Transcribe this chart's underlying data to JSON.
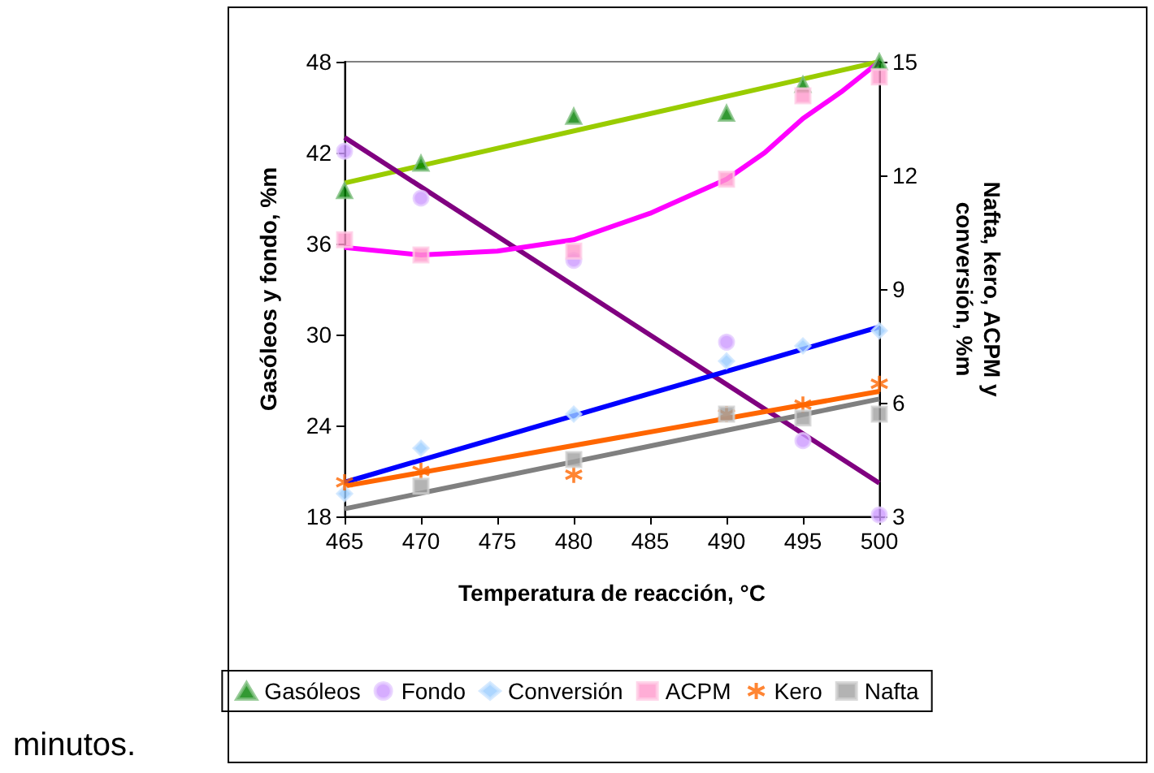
{
  "chart_data": {
    "type": "scatter",
    "xlabel": "Temperatura de reacción, °C",
    "ylabel": "Gasóleos y fondo, %m",
    "y2label": "Nafta, kero, ACPM y\nconversión, %m",
    "xlim": [
      465,
      500
    ],
    "xticks": [
      465,
      470,
      475,
      480,
      485,
      490,
      495,
      500
    ],
    "ylim": [
      18,
      48
    ],
    "yticks": [
      18,
      24,
      30,
      36,
      42,
      48
    ],
    "y2lim": [
      3,
      15
    ],
    "y2ticks": [
      3,
      6,
      9,
      12,
      15
    ],
    "grid": false,
    "legend": "bottom",
    "annotations": [
      "minutos."
    ],
    "x": [
      465,
      470,
      480,
      490,
      495,
      500
    ],
    "series": [
      {
        "name": "Gasóleos",
        "marker": "triangle",
        "color": "#008000",
        "values": [
          39.5,
          41.3,
          44.4,
          44.6,
          46.5,
          48.0
        ]
      },
      {
        "name": "Fondo",
        "marker": "circle",
        "color": "#cc99ff",
        "values": [
          42.1,
          39.0,
          34.9,
          29.5,
          23.0,
          18.1
        ]
      },
      {
        "name": "Conversión",
        "marker": "diamond",
        "axis": "y2",
        "color": "#99ccff",
        "values": [
          3.6,
          4.8,
          5.7,
          7.1,
          7.5,
          7.9
        ]
      },
      {
        "name": "ACPM",
        "marker": "square",
        "axis": "y2",
        "color": "#ff99cc",
        "values": [
          10.3,
          9.9,
          10.0,
          11.9,
          14.1,
          14.6
        ]
      },
      {
        "name": "Kero",
        "marker": "cross",
        "axis": "y2",
        "color": "#ff6600",
        "values": [
          3.9,
          4.2,
          4.1,
          5.7,
          5.95,
          6.5
        ]
      },
      {
        "name": "Nafta",
        "marker": "square",
        "axis": "y2",
        "color": "#a0a0a0",
        "values": [
          null,
          3.8,
          4.5,
          5.7,
          5.6,
          5.7
        ]
      },
      {
        "type": "line",
        "marker": "none",
        "color": "#99cc00",
        "x": [
          465,
          500
        ],
        "values": [
          40.0,
          48.0
        ]
      },
      {
        "type": "line",
        "marker": "none",
        "color": "#800080",
        "x": [
          465,
          500
        ],
        "values": [
          43.0,
          20.2
        ]
      },
      {
        "type": "line",
        "marker": "none",
        "axis": "y2",
        "color": "#0000ff",
        "x": [
          465,
          500
        ],
        "values": [
          3.9,
          8.0
        ]
      },
      {
        "type": "line",
        "marker": "none",
        "axis": "y2",
        "color": "#ff00ff",
        "x": [
          465,
          470,
          475,
          480,
          485,
          490,
          492.5,
          495,
          497.5,
          500
        ],
        "values": [
          10.1,
          9.9,
          10.0,
          10.3,
          11.0,
          11.9,
          12.6,
          13.5,
          14.2,
          15.0
        ]
      },
      {
        "type": "line",
        "marker": "none",
        "axis": "y2",
        "color": "#ff6600",
        "x": [
          465,
          500
        ],
        "values": [
          3.8,
          6.3
        ]
      },
      {
        "type": "line",
        "marker": "none",
        "axis": "y2",
        "color": "#808080",
        "x": [
          465,
          500
        ],
        "values": [
          3.2,
          6.1
        ]
      }
    ]
  }
}
